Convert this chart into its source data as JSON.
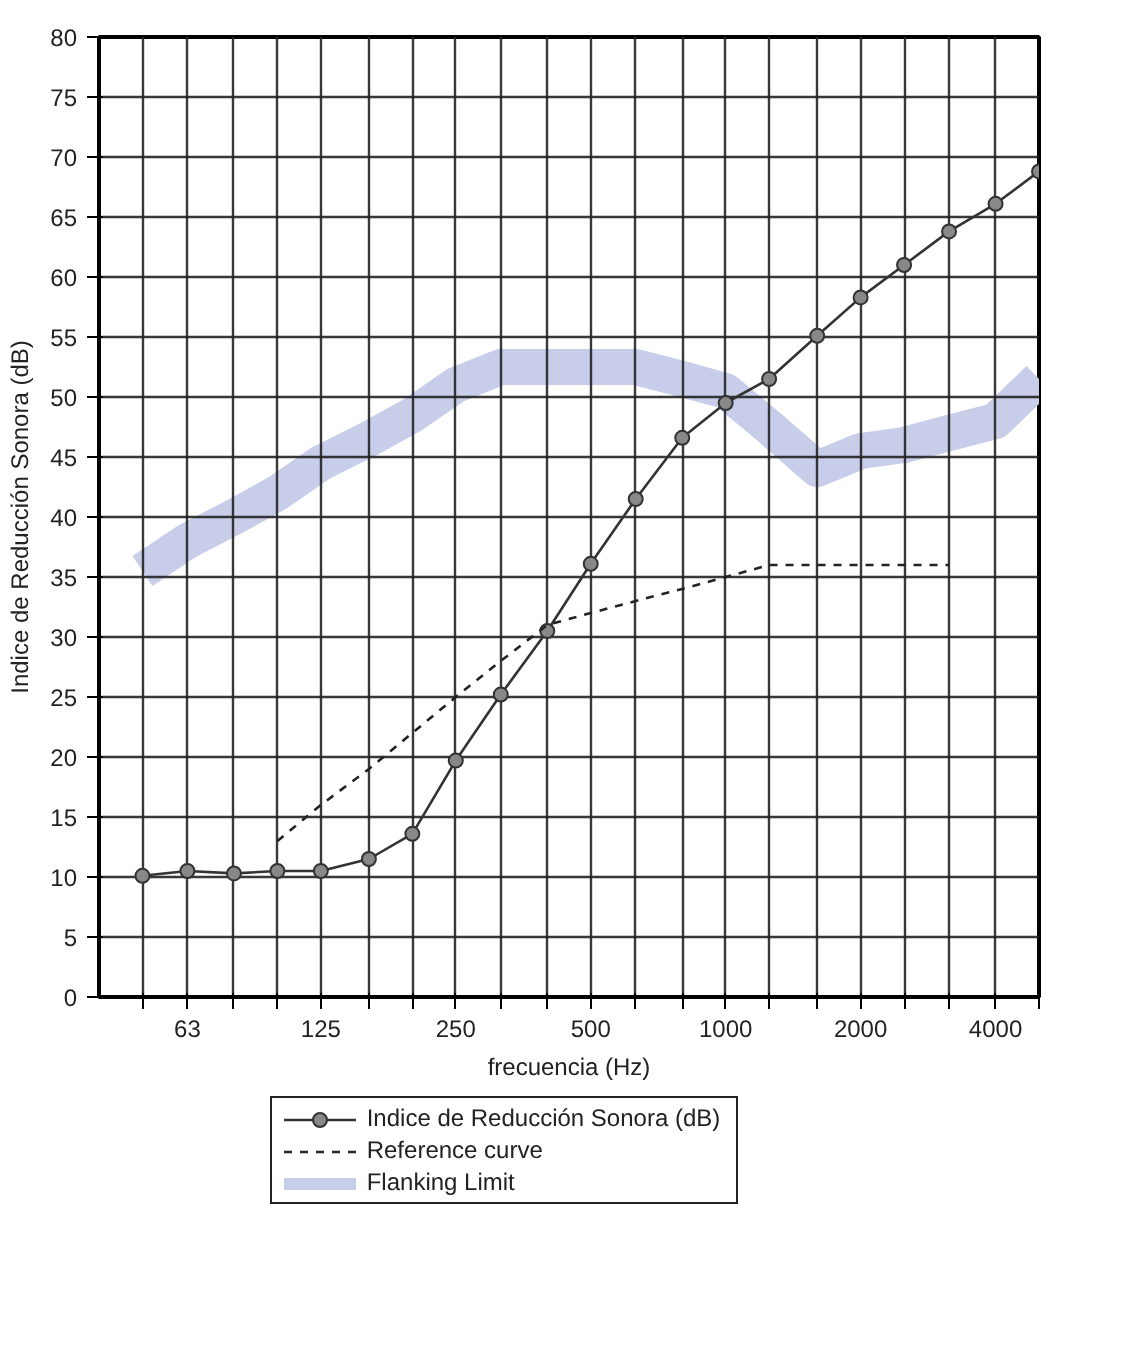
{
  "chart_data": {
    "type": "line",
    "xlabel": "frecuencia (Hz)",
    "ylabel": "Indice de Reducción Sonora (dB)",
    "log": "x",
    "xlim": [
      40,
      5000
    ],
    "ylim": [
      0,
      80
    ],
    "xticks": [
      {
        "value": 50,
        "label": null
      },
      63,
      {
        "value": 80,
        "label": null
      },
      {
        "value": 100,
        "label": null
      },
      125,
      {
        "value": 160,
        "label": null
      },
      {
        "value": 200,
        "label": null
      },
      250,
      {
        "value": 315,
        "label": null
      },
      {
        "value": 400,
        "label": null
      },
      500,
      {
        "value": 630,
        "label": null
      },
      {
        "value": 800,
        "label": null
      },
      1000,
      {
        "value": 1250,
        "label": null
      },
      {
        "value": 1600,
        "label": null
      },
      2000,
      {
        "value": 2500,
        "label": null
      },
      {
        "value": 3150,
        "label": null
      },
      4000,
      {
        "value": 5000,
        "label": null
      }
    ],
    "yticks": [
      0,
      5,
      10,
      15,
      20,
      25,
      30,
      35,
      40,
      45,
      50,
      55,
      60,
      65,
      70,
      75,
      80
    ],
    "grid": true,
    "legend": "bottom",
    "series": [
      {
        "name": "Indice de Reducción Sonora (dB)",
        "color": "#333333",
        "line_style": "solid",
        "marker": "circle",
        "x": [
          50,
          63,
          80,
          100,
          125,
          160,
          200,
          250,
          315,
          400,
          500,
          630,
          800,
          1000,
          1250,
          1600,
          2000,
          2500,
          3150,
          4000,
          5000
        ],
        "values": [
          10.1,
          10.5,
          10.3,
          10.5,
          10.5,
          11.5,
          13.6,
          19.7,
          25.2,
          30.5,
          36.1,
          41.5,
          46.6,
          49.5,
          51.5,
          55.1,
          58.3,
          61,
          63.8,
          66.1,
          68.8
        ]
      },
      {
        "name": "Reference curve",
        "color": "#222222",
        "line_style": "dashed",
        "marker": "none",
        "x": [
          100,
          125,
          160,
          200,
          250,
          315,
          400,
          500,
          630,
          800,
          1000,
          1250,
          1600,
          2000,
          2500,
          3150
        ],
        "values": [
          13,
          16,
          19,
          22,
          25,
          28,
          31,
          32,
          33,
          34,
          35,
          36,
          36,
          36,
          36,
          36
        ]
      },
      {
        "name": "Flanking Limit",
        "color": "#c8cdea",
        "line_style": "solid",
        "marker": "none",
        "x": [
          50,
          63,
          80,
          100,
          125,
          160,
          200,
          250,
          315,
          400,
          500,
          630,
          800,
          1000,
          1250,
          1600,
          2000,
          2500,
          3150,
          4000,
          5000
        ],
        "values": [
          35.5,
          38,
          40,
          42,
          44.5,
          46.5,
          48.5,
          51,
          52.5,
          52.5,
          52.5,
          52.5,
          51.5,
          50.5,
          47.5,
          44,
          45.5,
          46,
          47,
          48,
          51.5
        ]
      }
    ]
  }
}
